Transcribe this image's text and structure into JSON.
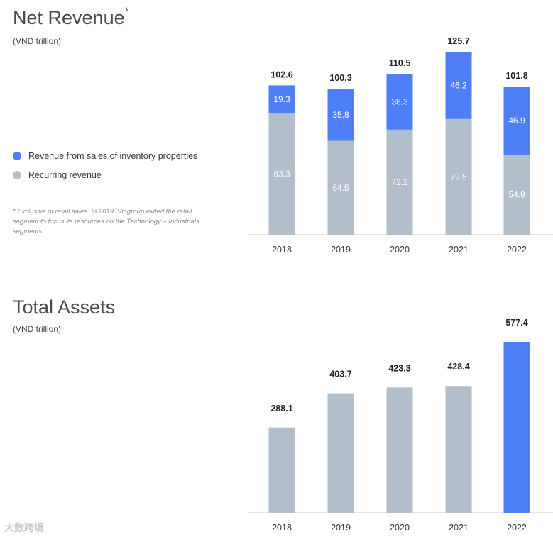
{
  "colors": {
    "blue": "#4f7ff7",
    "grey": "#b2bfca",
    "legend_grey": "#bdbdbd",
    "axis": "#c8c8c8"
  },
  "watermark": "大数跨境",
  "chart_data": [
    {
      "type": "bar",
      "stacked": true,
      "title": "Net Revenue",
      "title_marker": "*",
      "subtitle": "(VND trillion)",
      "categories": [
        "2018",
        "2019",
        "2020",
        "2021",
        "2022"
      ],
      "series": [
        {
          "name": "Recurring revenue",
          "values": [
            83.3,
            64.5,
            72.2,
            79.5,
            54.9
          ]
        },
        {
          "name": "Revenue from sales of inventory properties",
          "values": [
            19.3,
            35.8,
            38.3,
            46.2,
            46.9
          ]
        }
      ],
      "totals": [
        "102.6",
        "100.3",
        "110.5",
        "125.7",
        "101.8"
      ],
      "ylim": [
        0,
        125.7
      ],
      "legend_position": "left",
      "footnote": "* Exclusive of retail sales. In 2019, Vingroup exited the retail segment to focus its resources on the Technology – Industrials segments."
    },
    {
      "type": "bar",
      "title": "Total Assets",
      "subtitle": "(VND trillion)",
      "categories": [
        "2018",
        "2019",
        "2020",
        "2021",
        "2022"
      ],
      "values": [
        288.1,
        403.7,
        423.3,
        428.4,
        577.4
      ],
      "labels": [
        "288.1",
        "403.7",
        "423.3",
        "428.4",
        "577.4"
      ],
      "highlight_index": 4,
      "ylim": [
        0,
        577.4
      ]
    }
  ]
}
